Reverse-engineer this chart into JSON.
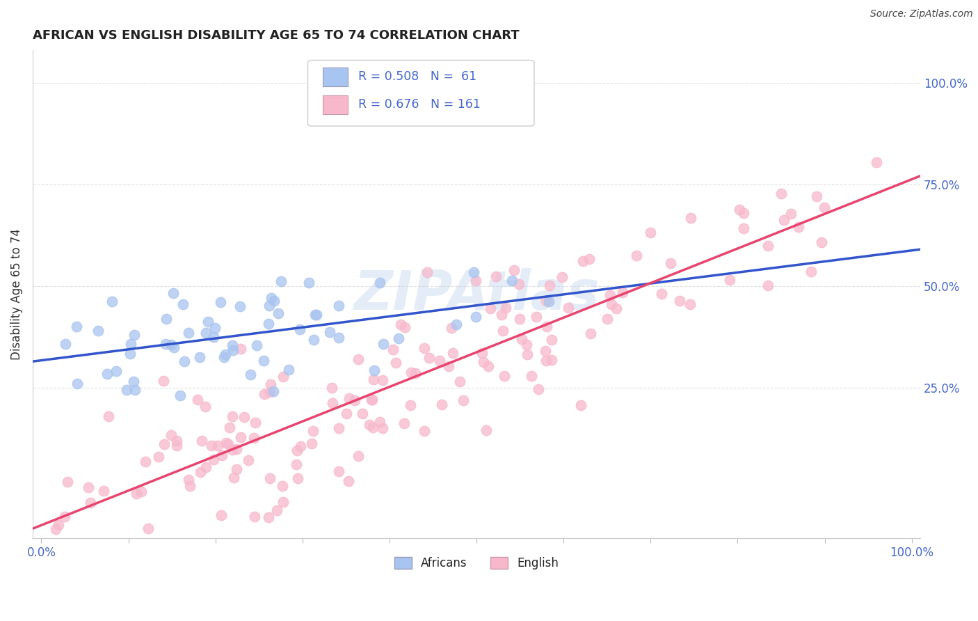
{
  "title": "AFRICAN VS ENGLISH DISABILITY AGE 65 TO 74 CORRELATION CHART",
  "source": "Source: ZipAtlas.com",
  "ylabel": "Disability Age 65 to 74",
  "xlim": [
    -0.01,
    1.01
  ],
  "ylim": [
    -0.12,
    1.08
  ],
  "ytick_vals": [
    0.25,
    0.5,
    0.75,
    1.0
  ],
  "xtick_vals": [
    0.0,
    0.1,
    0.2,
    0.3,
    0.4,
    0.5,
    0.6,
    0.7,
    0.8,
    0.9,
    1.0
  ],
  "africans_color": "#a8c4f0",
  "english_color": "#f7b8cc",
  "africans_line_color": "#3355cc",
  "english_line_color": "#e8446e",
  "dashed_line_color": "#88aadd",
  "tick_color": "#4466cc",
  "grid_color": "#cccccc",
  "title_color": "#222222",
  "watermark_color": "#c5d8ee",
  "legend_africans_R": "R = 0.508",
  "legend_africans_N": "N =  61",
  "legend_english_R": "R = 0.676",
  "legend_english_N": "N = 161",
  "watermark": "ZIPAtlas",
  "africans_seed": 17,
  "english_seed": 42,
  "n_africans": 61,
  "n_english": 161,
  "af_intercept": 0.295,
  "af_slope": 0.38,
  "af_noise": 0.07,
  "en_intercept": -0.08,
  "en_slope": 0.85,
  "en_noise": 0.09
}
